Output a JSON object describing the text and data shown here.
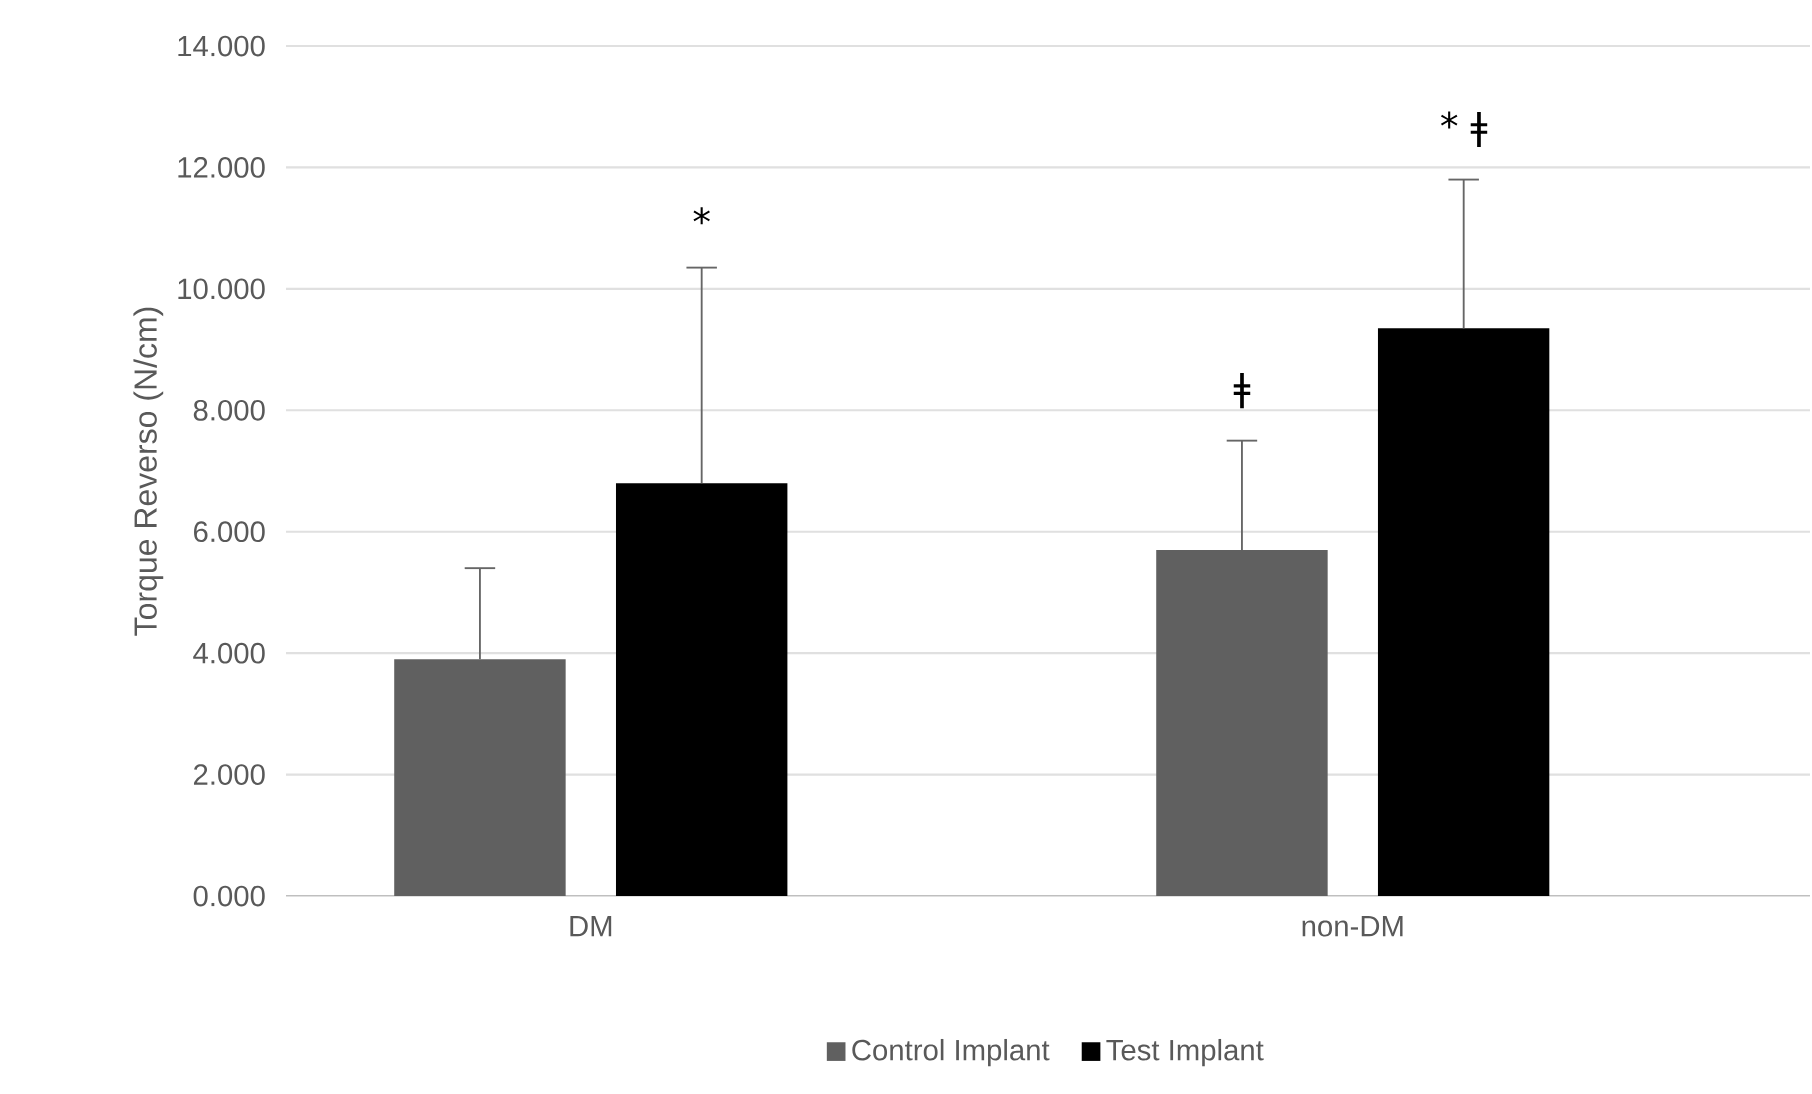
{
  "chart_data": {
    "type": "bar",
    "ylabel": "Torque Reverso (N/cm)",
    "categories": [
      "DM",
      "non-DM"
    ],
    "series": [
      {
        "name": "Control Implant",
        "color": "#606060",
        "values": [
          3.9,
          5.7
        ],
        "errors": [
          [
            3.9,
            5.4
          ],
          [
            5.7,
            7.5
          ]
        ]
      },
      {
        "name": "Test Implant",
        "color": "#000000",
        "values": [
          6.8,
          9.35
        ],
        "errors": [
          [
            6.8,
            10.35
          ],
          [
            9.35,
            11.8
          ]
        ]
      }
    ],
    "ylim": [
      0,
      14
    ],
    "yticks": [
      {
        "value": 0,
        "label": "0.000"
      },
      {
        "value": 2,
        "label": "2.000"
      },
      {
        "value": 4,
        "label": "4.000"
      },
      {
        "value": 6,
        "label": "6.000"
      },
      {
        "value": 8,
        "label": "8.000"
      },
      {
        "value": 10,
        "label": "10.000"
      },
      {
        "value": 12,
        "label": "12.000"
      },
      {
        "value": 14,
        "label": "14.000"
      }
    ],
    "grid": "y",
    "legend": "bottom",
    "annotations": [
      "*",
      "ǂ",
      "* ǂ"
    ]
  }
}
